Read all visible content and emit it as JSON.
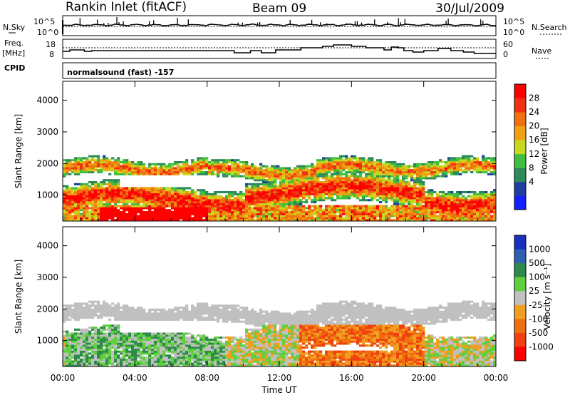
{
  "header": {
    "station": "Rankin Inlet (fitACF)",
    "beam": "Beam 09",
    "date": "30/Jul/2009"
  },
  "nsky_panel": {
    "left_label": "N.Sky",
    "left_ticks": [
      "10^5",
      "10^0"
    ],
    "right_ticks": [
      "10^5",
      "10^0"
    ],
    "right_label": "N.Search"
  },
  "freq_panel": {
    "left_label_top": "Freq.",
    "left_label_unit": "[MHz]",
    "left_ticks": [
      "18",
      "8"
    ],
    "right_ticks": [
      "60",
      "0"
    ],
    "right_label": "Nave",
    "cpid_label": "CPID"
  },
  "mode_text": "normalsound (fast) -157",
  "x_ticks": [
    "00:00",
    "04:00",
    "08:00",
    "12:00",
    "16:00",
    "20:00",
    "00:00"
  ],
  "x_label": "Time UT",
  "chart_data": [
    {
      "type": "heatmap",
      "quantity": "power",
      "ylabel": "Slant Range [km]",
      "yticks": [
        1000,
        2000,
        3000,
        4000
      ],
      "ylim": [
        180,
        4600
      ],
      "xlim": [
        0,
        24
      ],
      "colorbar_label": "Power [dB]",
      "colorbar_ticks": [
        "28",
        "24",
        "20",
        "16",
        "12",
        "8",
        "4"
      ],
      "colorbar_colors": [
        "#1020ff",
        "#1d3fa0",
        "#2f8a5a",
        "#3fbf3f",
        "#c8d820",
        "#f0a010",
        "#f07010",
        "#f03010",
        "#ff0000"
      ]
    },
    {
      "type": "heatmap",
      "quantity": "velocity",
      "ylabel": "Slant Range [km]",
      "yticks": [
        1000,
        2000,
        3000,
        4000
      ],
      "ylim": [
        180,
        4600
      ],
      "xlim": [
        0,
        24
      ],
      "colorbar_label": "Velocity [m s⁻¹]",
      "colorbar_ticks": [
        "1000",
        "500",
        "100",
        "25",
        "-25",
        "-100",
        "-500",
        "-1000"
      ],
      "colorbar_colors": [
        "#1830c0",
        "#2e5fb0",
        "#2e8a4a",
        "#5fcf3f",
        "#c0c0c0",
        "#f0a020",
        "#f07010",
        "#f04010",
        "#ff0000"
      ]
    }
  ]
}
